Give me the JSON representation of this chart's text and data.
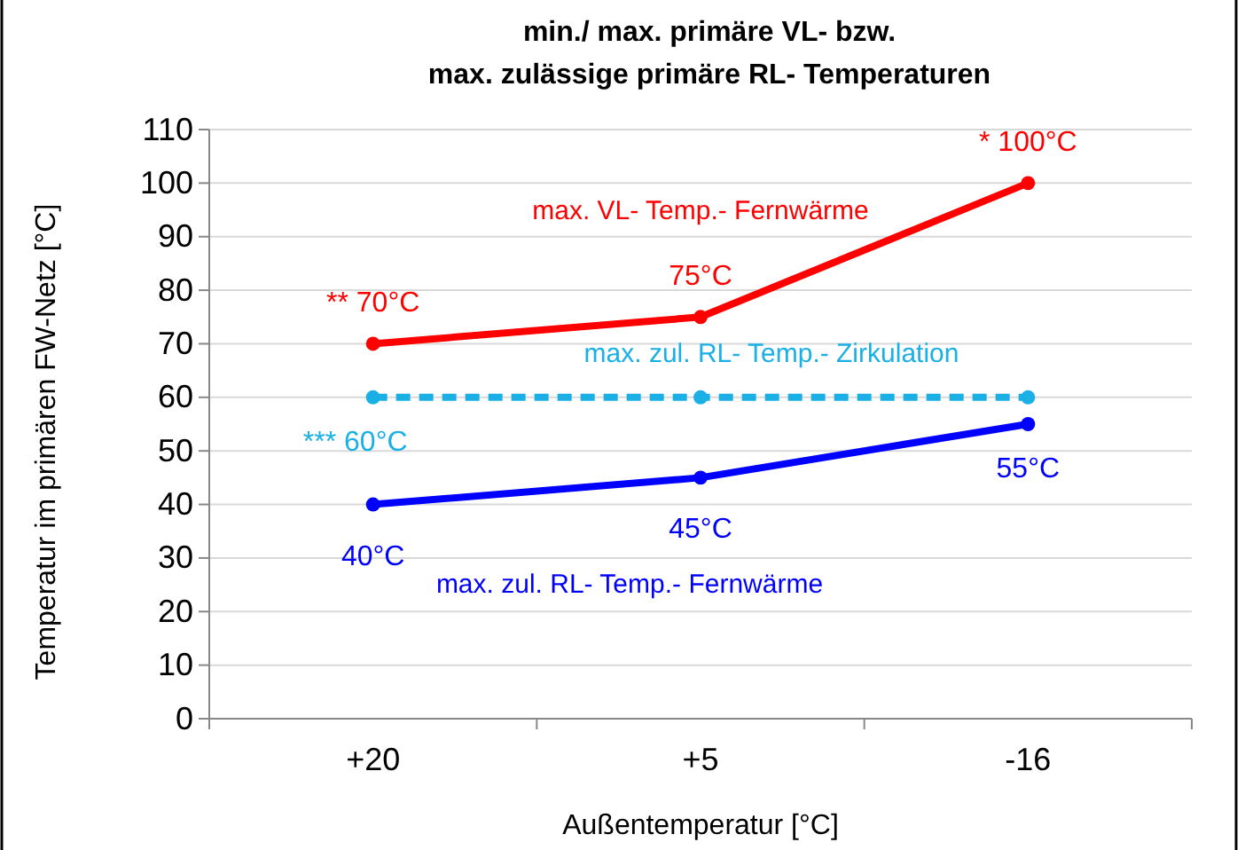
{
  "chart_data": {
    "type": "line",
    "title": "min./ max. primäre VL- bzw.\nmax. zulässige primäre  RL- Temperaturen",
    "xlabel": "Außentemperatur [°C]",
    "ylabel": "Temperatur im primären FW-Netz [°C]",
    "categories": [
      "+20",
      "+5",
      "-16"
    ],
    "series": [
      {
        "name": "max. VL- Temp.- Fernwärme",
        "color": "#ff0000",
        "values": [
          70,
          75,
          100
        ],
        "value_labels": [
          "** 70°C",
          "75°C",
          "* 100°C"
        ],
        "line_style": "solid"
      },
      {
        "name": "max. zul. RL- Temp.- Zirkulation",
        "color": "#1ab0e6",
        "values": [
          60,
          60,
          60
        ],
        "value_labels": [
          "*** 60°C",
          null,
          null
        ],
        "line_style": "dashed"
      },
      {
        "name": "max. zul. RL- Temp.- Fernwärme",
        "color": "#0000ff",
        "values": [
          40,
          45,
          55
        ],
        "value_labels": [
          "40°C",
          "45°C",
          "55°C"
        ],
        "line_style": "solid"
      }
    ],
    "ylim": [
      0,
      110
    ],
    "yticks": [
      0,
      10,
      20,
      30,
      40,
      50,
      60,
      70,
      80,
      90,
      100,
      110
    ],
    "grid": "y",
    "marker": "circle"
  }
}
